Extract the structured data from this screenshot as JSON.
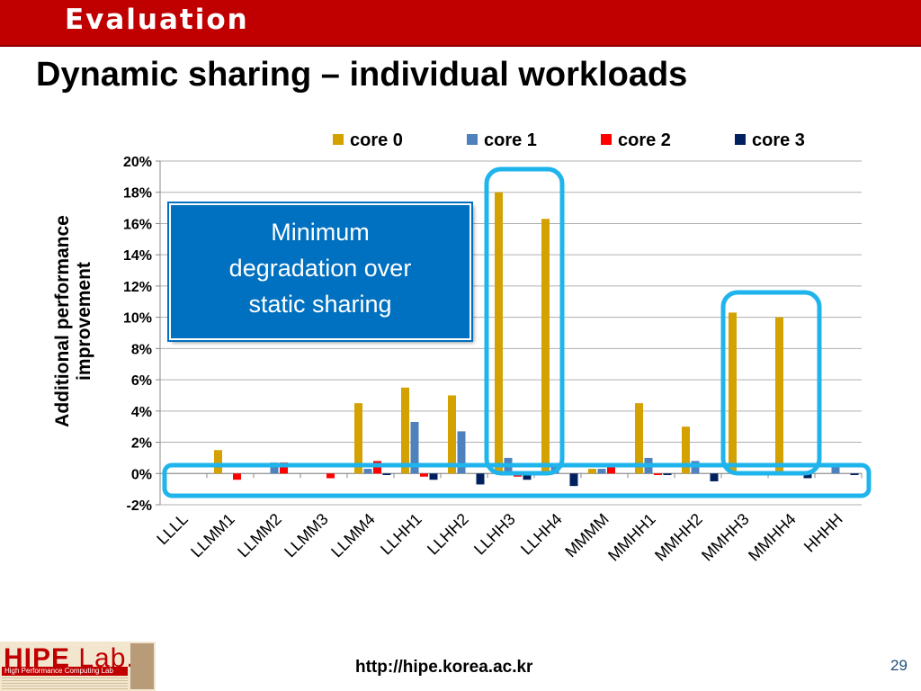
{
  "banner": {
    "title": "Evaluation"
  },
  "slide": {
    "title": "Dynamic sharing – individual workloads",
    "page_number": "29"
  },
  "footer": {
    "url": "http://hipe.korea.ac.kr"
  },
  "logo": {
    "name": "HIPE",
    "lab": "Lab.",
    "subtitle": "High Performance Computing Lab"
  },
  "callout": {
    "line1": "Minimum",
    "line2": "degradation over",
    "line3": "static sharing"
  },
  "colors": {
    "banner": "#c00000",
    "callout": "#0070c0",
    "highlight": "#1fb4ec"
  },
  "chart_data": {
    "type": "bar",
    "title": "",
    "xlabel": "",
    "ylabel": "Additional performance improvement",
    "ylim": [
      -0.02,
      0.2
    ],
    "yticks": [
      "20%",
      "18%",
      "16%",
      "14%",
      "12%",
      "10%",
      "8%",
      "6%",
      "4%",
      "2%",
      "0%",
      "-2%"
    ],
    "grid": true,
    "legend_position": "top",
    "categories": [
      "LLLL",
      "LLMM1",
      "LLMM2",
      "LLMM3",
      "LLMM4",
      "LLHH1",
      "LLHH2",
      "LLHH3",
      "LLHH4",
      "MMMM",
      "MMHH1",
      "MMHH2",
      "MMHH3",
      "MMHH4",
      "HHHH"
    ],
    "series": [
      {
        "name": "core 0",
        "color": "#d4a200",
        "values": [
          0.0,
          0.015,
          0.0,
          0.0,
          0.045,
          0.055,
          0.05,
          0.18,
          0.163,
          0.003,
          0.045,
          0.03,
          0.103,
          0.1,
          0.0
        ]
      },
      {
        "name": "core 1",
        "color": "#4f81bd",
        "values": [
          0.0,
          0.0,
          0.007,
          0.0,
          0.003,
          0.033,
          0.027,
          0.01,
          0.004,
          0.003,
          0.01,
          0.008,
          0.0,
          0.0,
          0.006
        ]
      },
      {
        "name": "core 2",
        "color": "#ff0000",
        "values": [
          0.0,
          -0.004,
          0.007,
          -0.003,
          0.008,
          -0.002,
          0.0,
          -0.002,
          0.0,
          0.004,
          -0.001,
          0.0,
          0.0,
          -0.001,
          0.0
        ]
      },
      {
        "name": "core 3",
        "color": "#002060",
        "values": [
          0.0,
          0.0,
          0.0,
          0.0,
          -0.001,
          -0.004,
          -0.007,
          -0.004,
          -0.008,
          0.0,
          -0.001,
          -0.005,
          0.0,
          -0.003,
          -0.001
        ]
      }
    ]
  }
}
